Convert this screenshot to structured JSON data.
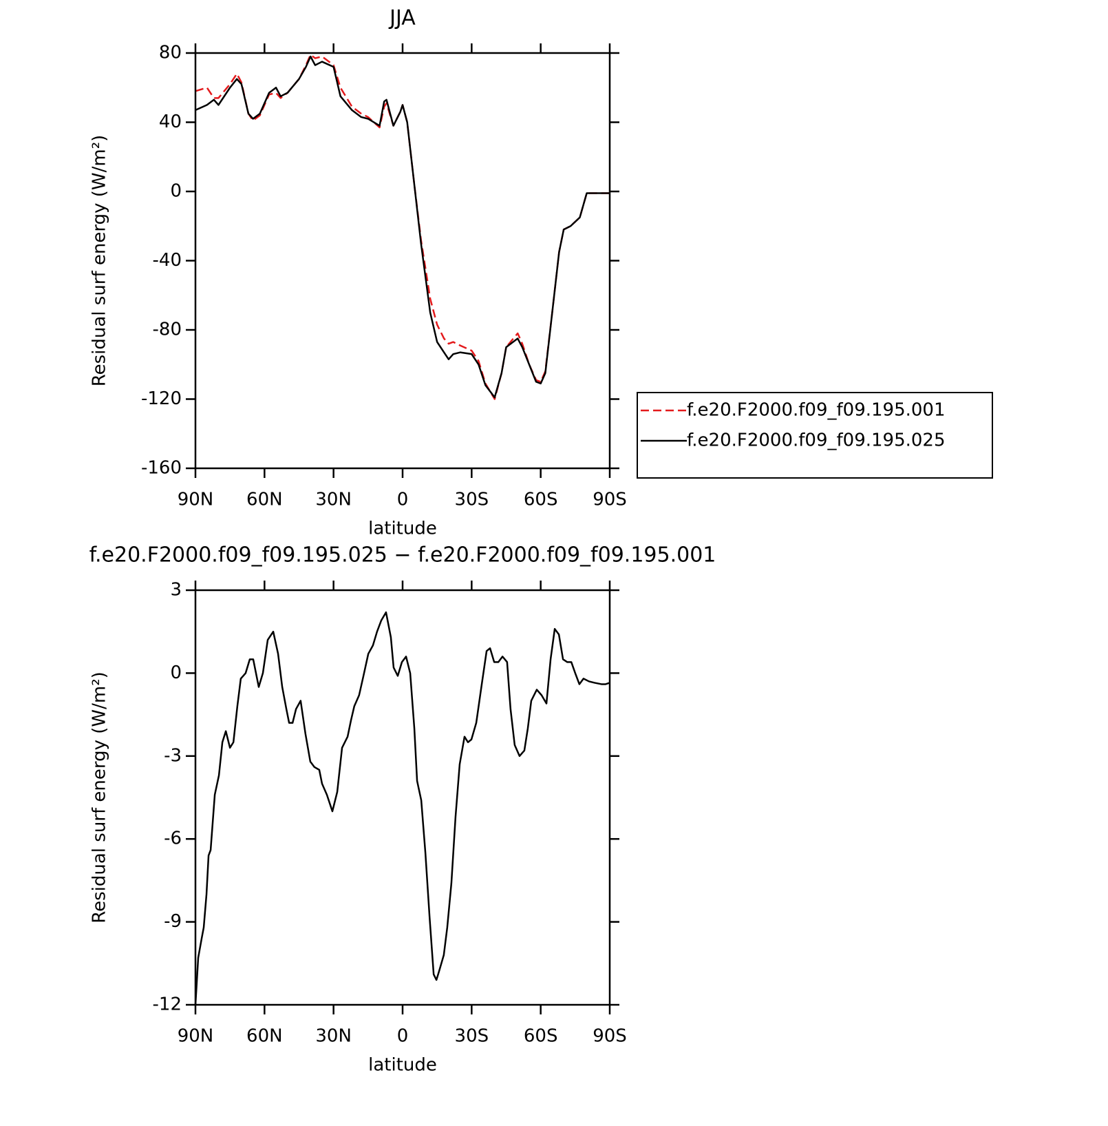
{
  "chart_data": [
    {
      "type": "line",
      "title": "JJA",
      "xlabel": "latitude",
      "ylabel": "Residual surf energy (W/m²)",
      "x": [
        90,
        85,
        82,
        80,
        75,
        72,
        70,
        67,
        65,
        62,
        58,
        55,
        53,
        50,
        45,
        42,
        40,
        38,
        35,
        30,
        27,
        22,
        18,
        15,
        10,
        8,
        7,
        4,
        1,
        0,
        -2,
        -5,
        -8,
        -12,
        -15,
        -18,
        -20,
        -22,
        -25,
        -30,
        -33,
        -36,
        -40,
        -43,
        -45,
        -50,
        -52,
        -55,
        -58,
        -60,
        -62,
        -65,
        -68,
        -70,
        -73,
        -77,
        -80,
        -85,
        -90
      ],
      "series": [
        {
          "name": "f.e20.F2000.f09_f09.195.001",
          "color": "#e31a1c",
          "dash": true,
          "values": [
            58,
            60,
            54,
            54,
            62,
            68,
            63,
            45,
            41,
            44,
            56,
            57,
            54,
            57,
            65,
            73,
            79,
            77,
            78,
            73,
            60,
            49,
            45,
            43,
            37,
            49,
            51,
            38,
            46,
            50,
            40,
            5,
            -28,
            -62,
            -77,
            -85,
            -88,
            -87,
            -89,
            -92,
            -98,
            -111,
            -120,
            -105,
            -90,
            -82,
            -88,
            -100,
            -109,
            -110,
            -104,
            -70,
            -35,
            -22,
            -20,
            -15,
            -1,
            -1,
            -1
          ]
        },
        {
          "name": "f.e20.F2000.f09_f09.195.025",
          "color": "#000000",
          "dash": false,
          "values": [
            47,
            50,
            53,
            50,
            60,
            65,
            62,
            45,
            42,
            45,
            57,
            60,
            55,
            57,
            65,
            72,
            78,
            73,
            75,
            72,
            55,
            47,
            43,
            42,
            38,
            52,
            53,
            38,
            46,
            50,
            40,
            5,
            -30,
            -70,
            -87,
            -93,
            -97,
            -94,
            -93,
            -94,
            -100,
            -112,
            -119,
            -105,
            -90,
            -85,
            -90,
            -100,
            -110,
            -111,
            -105,
            -70,
            -35,
            -22,
            -20,
            -15,
            -1,
            -1,
            -1
          ]
        }
      ],
      "xlim": [
        90,
        -90
      ],
      "xticks": [
        {
          "value": 90,
          "label": "90N"
        },
        {
          "value": 60,
          "label": "60N"
        },
        {
          "value": 30,
          "label": "30N"
        },
        0,
        {
          "value": -30,
          "label": "30S"
        },
        {
          "value": -60,
          "label": "60S"
        },
        {
          "value": -90,
          "label": "90S"
        }
      ],
      "ylim": [
        -160,
        80
      ],
      "yticks": [
        -160,
        -120,
        -80,
        -40,
        0,
        40,
        80
      ],
      "legend": "right"
    },
    {
      "type": "line",
      "title": "f.e20.F2000.f09_f09.195.025 − f.e20.F2000.f09_f09.195.001",
      "xlabel": "latitude",
      "ylabel": "Residual surf energy (W/m²)",
      "x": [
        90,
        88.8,
        87.3,
        86.4,
        85.2,
        84.3,
        83.4,
        81.6,
        79.8,
        78.3,
        76.8,
        75,
        73.5,
        71.8,
        70.3,
        68.2,
        66.4,
        64.9,
        62.5,
        60.7,
        58.6,
        56.2,
        54.1,
        52.3,
        50.5,
        49.3,
        47.8,
        46.3,
        44.3,
        42.2,
        40.1,
        38.3,
        36.2,
        35,
        32.9,
        30.5,
        28.4,
        26.3,
        23.9,
        22.4,
        21,
        18.9,
        17,
        14.9,
        12.9,
        11.1,
        9.3,
        7.2,
        5.1,
        3.9,
        2.1,
        0.3,
        -1.5,
        -3.3,
        -5.1,
        -6.3,
        -8.1,
        -9.9,
        -11.7,
        -13.5,
        -14.7,
        -15.8,
        -17.9,
        -19.4,
        -21.2,
        -23,
        -24.8,
        -26.9,
        -28.4,
        -29.9,
        -32,
        -34.4,
        -36.5,
        -38,
        -39.8,
        -41.6,
        -43.4,
        -45.4,
        -46.9,
        -48.7,
        -50.8,
        -52.9,
        -54.4,
        -55.9,
        -58.3,
        -60.4,
        -62.5,
        -64.3,
        -66.1,
        -67.9,
        -69.7,
        -71.5,
        -73.3,
        -75,
        -76.8,
        -78.6,
        -81,
        -83.4,
        -86.4,
        -88.2,
        -90
      ],
      "values": [
        -12,
        -10.3,
        -9.6,
        -9.2,
        -8,
        -6.6,
        -6.4,
        -4.4,
        -3.7,
        -2.5,
        -2.1,
        -2.7,
        -2.5,
        -1.2,
        -0.2,
        0,
        0.5,
        0.5,
        -0.5,
        0,
        1.2,
        1.5,
        0.7,
        -0.5,
        -1.3,
        -1.8,
        -1.8,
        -1.3,
        -1,
        -2.2,
        -3.2,
        -3.4,
        -3.5,
        -4,
        -4.4,
        -5,
        -4.3,
        -2.7,
        -2.3,
        -1.7,
        -1.2,
        -0.8,
        -0.1,
        0.7,
        1,
        1.5,
        1.9,
        2.2,
        1.3,
        0.2,
        -0.1,
        0.4,
        0.6,
        0,
        -2,
        -3.9,
        -4.6,
        -6.5,
        -8.8,
        -10.9,
        -11.1,
        -10.8,
        -10.2,
        -9.2,
        -7.6,
        -5.2,
        -3.3,
        -2.3,
        -2.5,
        -2.4,
        -1.8,
        -0.4,
        0.8,
        0.9,
        0.4,
        0.4,
        0.6,
        0.4,
        -1.3,
        -2.6,
        -3,
        -2.8,
        -2,
        -1,
        -0.6,
        -0.8,
        -1.1,
        0.5,
        1.6,
        1.4,
        0.5,
        0.4,
        0.4,
        0,
        -0.4,
        -0.2,
        -0.3,
        -0.35,
        -0.4,
        -0.4,
        -0.35
      ],
      "color": "#000000",
      "xlim": [
        90,
        -90
      ],
      "xticks": [
        {
          "value": 90,
          "label": "90N"
        },
        {
          "value": 60,
          "label": "60N"
        },
        {
          "value": 30,
          "label": "30N"
        },
        0,
        {
          "value": -30,
          "label": "30S"
        },
        {
          "value": -60,
          "label": "60S"
        },
        {
          "value": -90,
          "label": "90S"
        }
      ],
      "ylim": [
        -12,
        3
      ],
      "yticks": [
        -12,
        -9,
        -6,
        -3,
        0,
        3
      ]
    }
  ]
}
